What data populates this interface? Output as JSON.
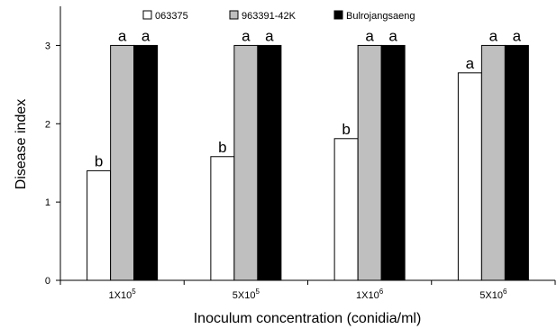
{
  "chart_data": {
    "type": "bar",
    "xlabel": "Inoculum concentration (conidia/ml)",
    "ylabel": "Disease index",
    "ylim": [
      0,
      3.5
    ],
    "yticks": [
      0,
      1,
      2,
      3
    ],
    "categories": [
      {
        "base": "1X10",
        "exp": "5"
      },
      {
        "base": "5X10",
        "exp": "5"
      },
      {
        "base": "1X10",
        "exp": "6"
      },
      {
        "base": "5X10",
        "exp": "6"
      }
    ],
    "series": [
      {
        "name": "063375",
        "color": "#ffffff",
        "values": [
          1.4,
          1.58,
          1.81,
          2.65
        ],
        "letters": [
          "b",
          "b",
          "b",
          "a"
        ]
      },
      {
        "name": "963391-42K",
        "color": "#bfbfbf",
        "values": [
          3.0,
          3.0,
          3.0,
          3.0
        ],
        "letters": [
          "a",
          "a",
          "a",
          "a"
        ]
      },
      {
        "name": "Bulrojangsaeng",
        "color": "#000000",
        "values": [
          3.0,
          3.0,
          3.0,
          3.0
        ],
        "letters": [
          "a",
          "a",
          "a",
          "a"
        ]
      }
    ],
    "legend_position": "top-right",
    "grid": false
  }
}
